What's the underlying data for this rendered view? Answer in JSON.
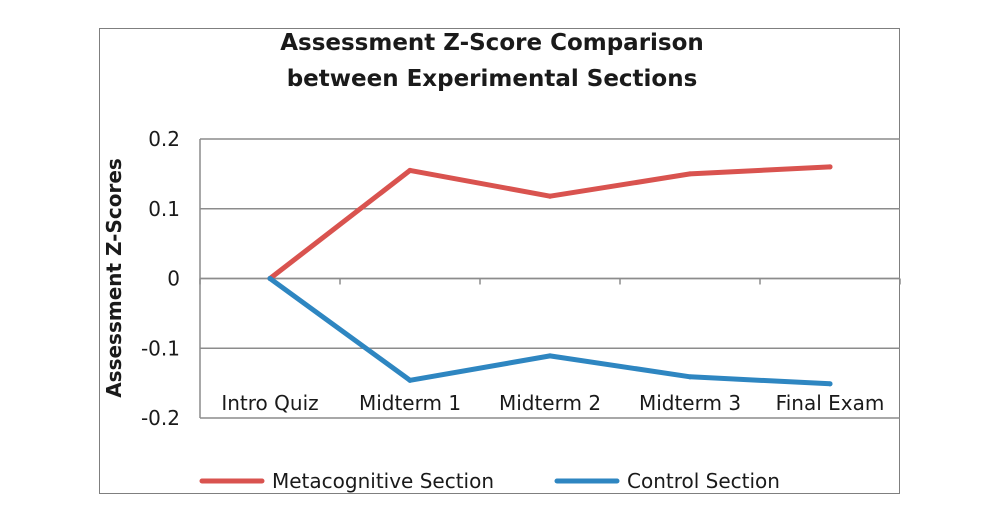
{
  "chart_data": {
    "type": "line",
    "title": "Assessment Z-Score Comparison between Experimental Sections",
    "title_lines": [
      "Assessment Z-Score Comparison",
      "between Experimental Sections"
    ],
    "xlabel": "",
    "ylabel": "Assessment Z-Scores",
    "categories": [
      "Intro Quiz",
      "Midterm 1",
      "Midterm 2",
      "Midterm 3",
      "Final Exam"
    ],
    "series": [
      {
        "name": "Metacognitive Section",
        "color": "#d9534f",
        "values": [
          0,
          0.155,
          0.118,
          0.15,
          0.16
        ]
      },
      {
        "name": "Control Section",
        "color": "#2e86c1",
        "values": [
          0,
          -0.146,
          -0.111,
          -0.141,
          -0.151
        ]
      }
    ],
    "ylim": [
      -0.2,
      0.2
    ],
    "yticks": [
      0.2,
      0.1,
      0,
      -0.1,
      -0.2
    ],
    "ytick_labels": [
      "0.2",
      "0.1",
      "0",
      "-0.1",
      "-0.2"
    ],
    "grid": true,
    "legend_position": "bottom"
  }
}
